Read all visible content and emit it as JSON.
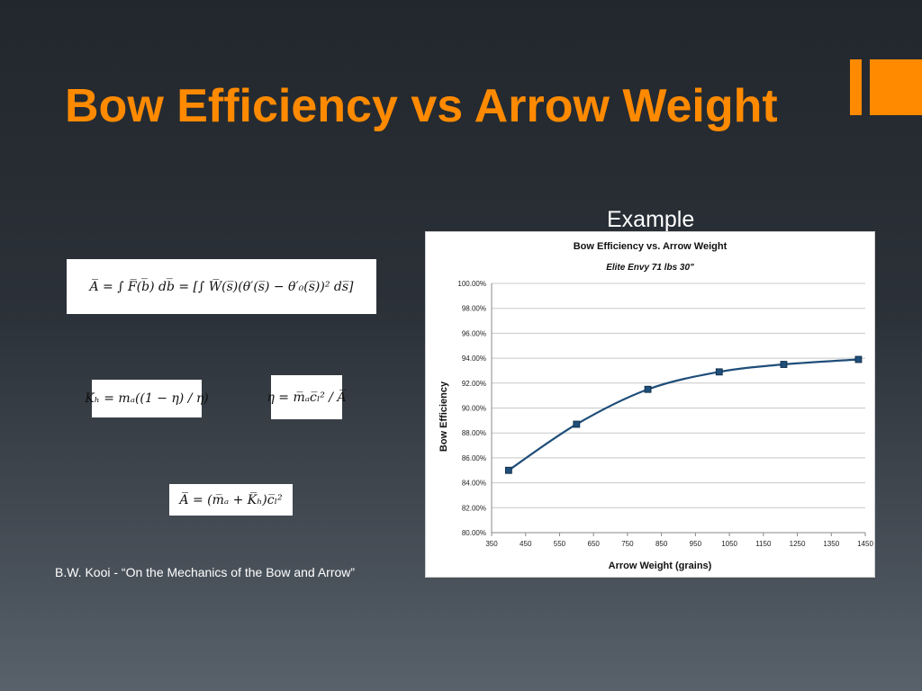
{
  "slide": {
    "title": "Bow Efficiency vs Arrow Weight",
    "example_label": "Example",
    "citation": "B.W. Kooi - “On the Mechanics of the Bow and Arrow”",
    "accent_color": "#ff8a00"
  },
  "equations": {
    "eq1": "A̅ = ∫ F̅(b̅) db̅ = [∫ W̅(s̅)(θ′(s̅) − θ′₀(s̅))² ds̅]",
    "eq2": "Kₕ = mₐ((1 − η) / η)",
    "eq3": "η = m̅ₐc̅ₗ² / A̅",
    "eq4": "A̅ = (m̅ₐ + K̅ₕ)c̅ₗ²"
  },
  "chart_data": {
    "type": "line",
    "title": "Bow Efficiency vs. Arrow Weight",
    "subtitle": "Elite Envy 71 lbs 30\"",
    "xlabel": "Arrow Weight (grains)",
    "ylabel": "Bow Efficiency",
    "xlim": [
      350,
      1450
    ],
    "ylim": [
      80,
      100
    ],
    "x_ticks": [
      "350",
      "450",
      "550",
      "650",
      "750",
      "850",
      "950",
      "1050",
      "1150",
      "1250",
      "1350",
      "1450"
    ],
    "y_ticks": [
      "80.00%",
      "82.00%",
      "84.00%",
      "86.00%",
      "88.00%",
      "90.00%",
      "92.00%",
      "94.00%",
      "96.00%",
      "98.00%",
      "100.00%"
    ],
    "grid": true,
    "legend": "none",
    "series": [
      {
        "color": "#1f4e79",
        "x": [
          400,
          600,
          810,
          1020,
          1210,
          1430
        ],
        "y": [
          85.0,
          88.7,
          91.5,
          92.9,
          93.5,
          93.9
        ]
      }
    ]
  }
}
